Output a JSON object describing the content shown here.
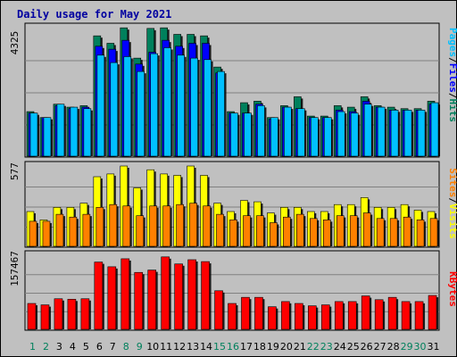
{
  "chart_data": {
    "type": "bar",
    "title": "Daily usage for May 2021",
    "days": [
      "1",
      "2",
      "3",
      "4",
      "5",
      "6",
      "7",
      "8",
      "9",
      "10",
      "11",
      "12",
      "13",
      "14",
      "15",
      "16",
      "17",
      "18",
      "19",
      "20",
      "21",
      "22",
      "23",
      "24",
      "25",
      "26",
      "27",
      "28",
      "29",
      "30",
      "31"
    ],
    "weekend_days": [
      "1",
      "2",
      "8",
      "9",
      "15",
      "16",
      "22",
      "23",
      "29",
      "30"
    ],
    "colors": {
      "hits": "#00805c",
      "files": "#0000ff",
      "pages": "#00c0ff",
      "visits": "#ffff00",
      "sites": "#ff8000",
      "kbytes": "#ff0000",
      "weekday_label": "#000000",
      "weekend_label": "#00805c"
    },
    "panels": [
      {
        "id": "hits",
        "ymax": 4325,
        "ymax_label": "4325",
        "legend": [
          {
            "text": "Pages",
            "color": "#00c0ff"
          },
          {
            "text": "/",
            "color": "#000000"
          },
          {
            "text": "Files",
            "color": "#0000ff"
          },
          {
            "text": "/",
            "color": "#000000"
          },
          {
            "text": "Hits",
            "color": "#00805c"
          }
        ],
        "series": [
          {
            "name": "Hits",
            "values": [
              1500,
              1300,
              1750,
              1650,
              1700,
              4050,
              3800,
              4320,
              3300,
              4300,
              4320,
              4100,
              4100,
              4050,
              3000,
              1500,
              1800,
              1850,
              1300,
              1700,
              2000,
              1350,
              1350,
              1700,
              1650,
              2000,
              1700,
              1650,
              1600,
              1600,
              1850
            ]
          },
          {
            "name": "Files",
            "values": [
              1450,
              1300,
              1700,
              1600,
              1650,
              3700,
              3600,
              3900,
              3100,
              3500,
              3900,
              3700,
              3800,
              3800,
              2800,
              1450,
              1450,
              1750,
              1250,
              1650,
              1600,
              1300,
              1300,
              1550,
              1500,
              1850,
              1650,
              1550,
              1550,
              1550,
              1750
            ]
          },
          {
            "name": "Pages",
            "values": [
              1450,
              1300,
              1750,
              1650,
              1600,
              3400,
              3150,
              3350,
              2850,
              3450,
              3650,
              3400,
              3300,
              3250,
              2850,
              1450,
              1450,
              1700,
              1300,
              1650,
              1600,
              1300,
              1300,
              1500,
              1450,
              1750,
              1650,
              1550,
              1550,
              1550,
              1800
            ]
          }
        ]
      },
      {
        "id": "visits",
        "ymax": 577,
        "ymax_label": "577",
        "legend": [
          {
            "text": "Sites",
            "color": "#ff8000"
          },
          {
            "text": "/",
            "color": "#000000"
          },
          {
            "text": "Visits",
            "color": "#ffff00"
          }
        ],
        "series": [
          {
            "name": "Visits",
            "values": [
              250,
              190,
              280,
              280,
              310,
              500,
              520,
              580,
              420,
              550,
              520,
              510,
              590,
              510,
              310,
              250,
              330,
              320,
              240,
              280,
              280,
              250,
              250,
              300,
              300,
              350,
              280,
              280,
              300,
              260,
              250
            ]
          },
          {
            "name": "Sites",
            "values": [
              180,
              180,
              230,
              210,
              230,
              280,
              300,
              290,
              220,
              290,
              290,
              300,
              310,
              290,
              230,
              190,
              220,
              220,
              170,
              210,
              230,
              200,
              190,
              220,
              220,
              240,
              200,
              200,
              210,
              190,
              200
            ]
          }
        ]
      },
      {
        "id": "kbytes",
        "ymax": 157467,
        "ymax_label": "157467",
        "legend": [
          {
            "text": "KBytes",
            "color": "#ff0000"
          }
        ],
        "series": [
          {
            "name": "KBytes",
            "values": [
              55000,
              52000,
              65000,
              64000,
              65000,
              143000,
              133000,
              150000,
              121000,
              126000,
              154000,
              139000,
              148000,
              144000,
              82000,
              55000,
              68000,
              68000,
              48000,
              59000,
              55000,
              50000,
              52000,
              59000,
              59000,
              71000,
              63000,
              68000,
              59000,
              59000,
              72000
            ]
          }
        ]
      }
    ]
  }
}
